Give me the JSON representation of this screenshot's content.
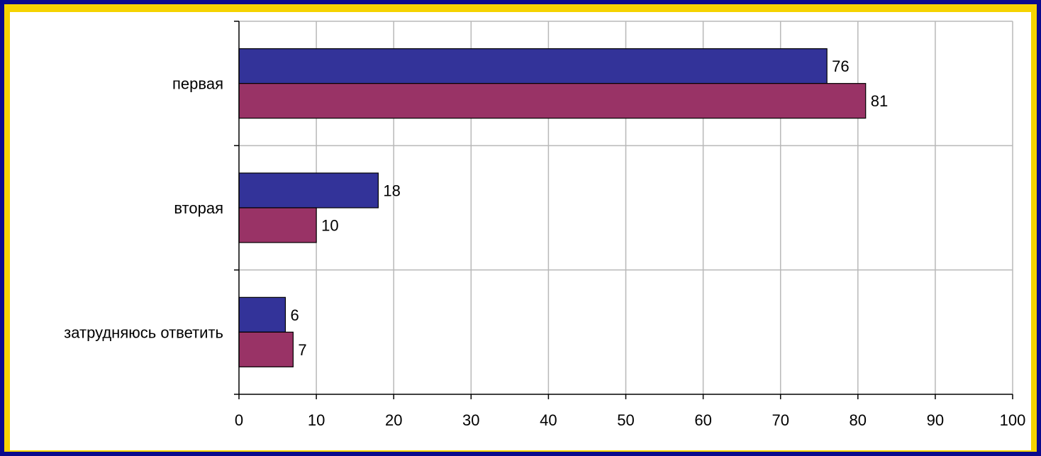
{
  "colors": {
    "background": "#0a0a8c",
    "border": "#f5d300",
    "panel": "#ffffff",
    "grid": "#b8b8b8",
    "series_1": "#333399",
    "series_2": "#993366"
  },
  "chart_data": {
    "type": "bar",
    "orientation": "horizontal",
    "categories": [
      "первая",
      "вторая",
      "затрудняюсь ответить"
    ],
    "series": [
      {
        "values": [
          76,
          18,
          6
        ],
        "color": "#333399"
      },
      {
        "values": [
          81,
          10,
          7
        ],
        "color": "#993366"
      }
    ],
    "xlim": [
      0,
      100
    ],
    "xticks": [
      0,
      10,
      20,
      30,
      40,
      50,
      60,
      70,
      80,
      90,
      100
    ],
    "grid": true,
    "legend": "none",
    "title": "",
    "xlabel": "",
    "ylabel": ""
  }
}
